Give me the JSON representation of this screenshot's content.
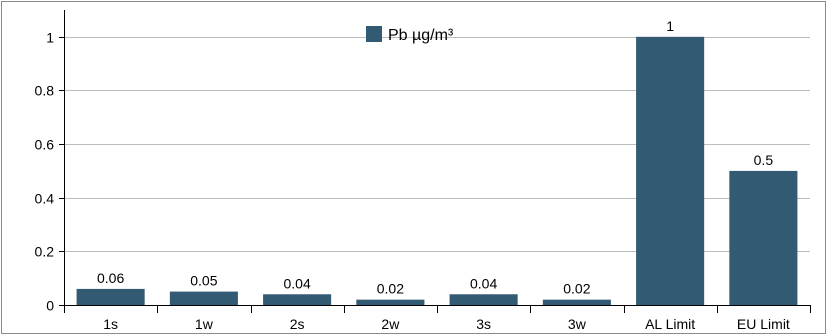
{
  "chart_data": {
    "type": "bar",
    "categories": [
      "1s",
      "1w",
      "2s",
      "2w",
      "3s",
      "3w",
      "AL Limit",
      "EU Limit"
    ],
    "series": [
      {
        "name": "Pb µg/m³",
        "values": [
          0.06,
          0.05,
          0.04,
          0.02,
          0.04,
          0.02,
          1,
          0.5
        ]
      }
    ],
    "data_labels": [
      "0.06",
      "0.05",
      "0.04",
      "0.02",
      "0.04",
      "0.02",
      "1",
      "0.5"
    ],
    "y_ticks": [
      "0",
      "0.2",
      "0.4",
      "0.6",
      "0.8",
      "1"
    ],
    "ylim": [
      0,
      1.1
    ],
    "title": "",
    "xlabel": "",
    "ylabel": "",
    "grid": true,
    "legend_position": "top-center",
    "colors": {
      "bar": "#335a73",
      "grid": "#bdbdbd",
      "axis": "#000000"
    }
  }
}
